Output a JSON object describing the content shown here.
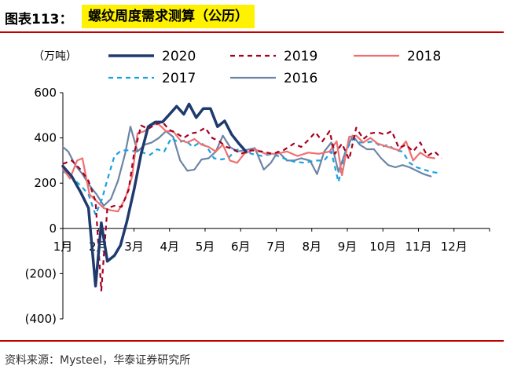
{
  "figure": {
    "label": "图表113：",
    "title": "螺纹周度需求测算（公历）",
    "source": "资料来源：Mysteel，华泰证券研究所"
  },
  "chart_data": {
    "type": "line",
    "title": "螺纹周度需求测算（公历）",
    "unit": "（万吨）",
    "xlabel": "",
    "ylabel": "（万吨）",
    "ylim": [
      -400,
      600
    ],
    "yticks": [
      -400,
      -200,
      0,
      200,
      400,
      600
    ],
    "ytick_labels": [
      "(400)",
      "(200)",
      "0",
      "200",
      "400",
      "600"
    ],
    "xlim": [
      1,
      13
    ],
    "xticks": [
      1,
      2,
      3,
      4,
      5,
      6,
      7,
      8,
      9,
      10,
      11,
      12
    ],
    "xtick_labels": [
      "1月",
      "2月",
      "3月",
      "4月",
      "5月",
      "6月",
      "7月",
      "8月",
      "9月",
      "10月",
      "11月",
      "12月"
    ],
    "legend": [
      "2020",
      "2019",
      "2018",
      "2017",
      "2016"
    ],
    "series": [
      {
        "name": "2020",
        "color": "#1f3a6e",
        "style": "solid",
        "width": 3.5,
        "points": [
          [
            1.0,
            275
          ],
          [
            1.25,
            230
          ],
          [
            1.5,
            160
          ],
          [
            1.72,
            90
          ],
          [
            1.92,
            -255
          ],
          [
            2.08,
            25
          ],
          [
            2.25,
            -145
          ],
          [
            2.45,
            -120
          ],
          [
            2.62,
            -75
          ],
          [
            2.8,
            30
          ],
          [
            3.0,
            170
          ],
          [
            3.2,
            330
          ],
          [
            3.4,
            450
          ],
          [
            3.6,
            470
          ],
          [
            3.8,
            470
          ],
          [
            4.0,
            505
          ],
          [
            4.2,
            540
          ],
          [
            4.4,
            505
          ],
          [
            4.55,
            550
          ],
          [
            4.75,
            490
          ],
          [
            4.95,
            530
          ],
          [
            5.15,
            530
          ],
          [
            5.35,
            450
          ],
          [
            5.55,
            475
          ],
          [
            5.75,
            415
          ],
          [
            5.95,
            375
          ],
          [
            6.15,
            340
          ]
        ]
      },
      {
        "name": "2019",
        "color": "#a50021",
        "style": "dashed",
        "width": 2.2,
        "points": [
          [
            1.0,
            285
          ],
          [
            1.25,
            300
          ],
          [
            1.5,
            260
          ],
          [
            1.72,
            210
          ],
          [
            1.92,
            120
          ],
          [
            2.08,
            -275
          ],
          [
            2.25,
            90
          ],
          [
            2.45,
            100
          ],
          [
            2.65,
            95
          ],
          [
            2.85,
            170
          ],
          [
            3.0,
            330
          ],
          [
            3.2,
            455
          ],
          [
            3.4,
            440
          ],
          [
            3.6,
            460
          ],
          [
            3.8,
            470
          ],
          [
            4.0,
            435
          ],
          [
            4.2,
            420
          ],
          [
            4.4,
            400
          ],
          [
            4.6,
            420
          ],
          [
            4.8,
            425
          ],
          [
            5.0,
            445
          ],
          [
            5.2,
            400
          ],
          [
            5.4,
            385
          ],
          [
            5.6,
            360
          ],
          [
            5.8,
            350
          ],
          [
            6.0,
            330
          ],
          [
            6.3,
            345
          ],
          [
            6.6,
            340
          ],
          [
            6.9,
            330
          ],
          [
            7.2,
            345
          ],
          [
            7.5,
            375
          ],
          [
            7.7,
            360
          ],
          [
            7.9,
            390
          ],
          [
            8.1,
            425
          ],
          [
            8.3,
            385
          ],
          [
            8.5,
            430
          ],
          [
            8.65,
            330
          ],
          [
            8.85,
            375
          ],
          [
            9.05,
            305
          ],
          [
            9.25,
            445
          ],
          [
            9.45,
            395
          ],
          [
            9.65,
            420
          ],
          [
            9.85,
            425
          ],
          [
            10.05,
            415
          ],
          [
            10.25,
            430
          ],
          [
            10.45,
            355
          ],
          [
            10.65,
            370
          ],
          [
            10.85,
            340
          ],
          [
            11.05,
            380
          ],
          [
            11.25,
            320
          ],
          [
            11.45,
            340
          ],
          [
            11.65,
            310
          ]
        ]
      },
      {
        "name": "2018",
        "color": "#f07070",
        "style": "solid",
        "width": 2.2,
        "points": [
          [
            1.0,
            265
          ],
          [
            1.2,
            220
          ],
          [
            1.4,
            300
          ],
          [
            1.55,
            310
          ],
          [
            1.75,
            150
          ],
          [
            1.95,
            120
          ],
          [
            2.15,
            90
          ],
          [
            2.35,
            80
          ],
          [
            2.55,
            75
          ],
          [
            2.75,
            130
          ],
          [
            2.95,
            230
          ],
          [
            3.1,
            420
          ],
          [
            3.3,
            430
          ],
          [
            3.5,
            460
          ],
          [
            3.7,
            460
          ],
          [
            3.9,
            430
          ],
          [
            4.1,
            430
          ],
          [
            4.3,
            390
          ],
          [
            4.5,
            380
          ],
          [
            4.7,
            395
          ],
          [
            4.9,
            370
          ],
          [
            5.1,
            360
          ],
          [
            5.3,
            340
          ],
          [
            5.5,
            370
          ],
          [
            5.7,
            300
          ],
          [
            5.9,
            290
          ],
          [
            6.1,
            330
          ],
          [
            6.4,
            350
          ],
          [
            6.7,
            330
          ],
          [
            7.0,
            330
          ],
          [
            7.3,
            340
          ],
          [
            7.6,
            320
          ],
          [
            7.9,
            335
          ],
          [
            8.2,
            330
          ],
          [
            8.5,
            340
          ],
          [
            8.7,
            385
          ],
          [
            8.85,
            235
          ],
          [
            9.05,
            405
          ],
          [
            9.25,
            410
          ],
          [
            9.45,
            380
          ],
          [
            9.65,
            400
          ],
          [
            9.85,
            375
          ],
          [
            10.05,
            365
          ],
          [
            10.25,
            355
          ],
          [
            10.45,
            345
          ],
          [
            10.65,
            385
          ],
          [
            10.85,
            300
          ],
          [
            11.05,
            335
          ],
          [
            11.25,
            315
          ],
          [
            11.45,
            310
          ]
        ]
      },
      {
        "name": "2017",
        "color": "#19a2e0",
        "style": "dashed",
        "width": 2.2,
        "points": [
          [
            1.0,
            255
          ],
          [
            1.25,
            225
          ],
          [
            1.5,
            190
          ],
          [
            1.72,
            150
          ],
          [
            1.92,
            60
          ],
          [
            2.1,
            130
          ],
          [
            2.25,
            215
          ],
          [
            2.45,
            320
          ],
          [
            2.65,
            345
          ],
          [
            2.85,
            345
          ],
          [
            3.05,
            340
          ],
          [
            3.25,
            335
          ],
          [
            3.45,
            325
          ],
          [
            3.65,
            350
          ],
          [
            3.85,
            340
          ],
          [
            4.05,
            400
          ],
          [
            4.25,
            380
          ],
          [
            4.45,
            390
          ],
          [
            4.65,
            360
          ],
          [
            4.85,
            380
          ],
          [
            5.05,
            360
          ],
          [
            5.25,
            310
          ],
          [
            5.45,
            305
          ],
          [
            5.65,
            310
          ],
          [
            5.85,
            345
          ],
          [
            6.05,
            355
          ],
          [
            6.3,
            330
          ],
          [
            6.6,
            320
          ],
          [
            6.9,
            330
          ],
          [
            7.2,
            310
          ],
          [
            7.5,
            295
          ],
          [
            7.8,
            290
          ],
          [
            8.1,
            300
          ],
          [
            8.35,
            300
          ],
          [
            8.55,
            340
          ],
          [
            8.75,
            205
          ],
          [
            8.95,
            340
          ],
          [
            9.15,
            395
          ],
          [
            9.35,
            380
          ],
          [
            9.55,
            380
          ],
          [
            9.75,
            385
          ],
          [
            9.95,
            360
          ],
          [
            10.15,
            370
          ],
          [
            10.35,
            345
          ],
          [
            10.55,
            340
          ],
          [
            10.75,
            290
          ],
          [
            10.95,
            270
          ],
          [
            11.15,
            260
          ],
          [
            11.35,
            250
          ],
          [
            11.55,
            245
          ]
        ]
      },
      {
        "name": "2016",
        "color": "#6d84a6",
        "style": "solid",
        "width": 2.2,
        "points": [
          [
            1.0,
            360
          ],
          [
            1.15,
            340
          ],
          [
            1.35,
            280
          ],
          [
            1.55,
            240
          ],
          [
            1.75,
            190
          ],
          [
            1.95,
            150
          ],
          [
            2.15,
            100
          ],
          [
            2.35,
            130
          ],
          [
            2.55,
            210
          ],
          [
            2.75,
            330
          ],
          [
            2.9,
            450
          ],
          [
            3.1,
            340
          ],
          [
            3.3,
            370
          ],
          [
            3.5,
            380
          ],
          [
            3.7,
            400
          ],
          [
            3.9,
            430
          ],
          [
            4.1,
            405
          ],
          [
            4.3,
            300
          ],
          [
            4.5,
            255
          ],
          [
            4.7,
            260
          ],
          [
            4.9,
            305
          ],
          [
            5.1,
            310
          ],
          [
            5.3,
            340
          ],
          [
            5.5,
            410
          ],
          [
            5.7,
            360
          ],
          [
            5.9,
            340
          ],
          [
            6.1,
            345
          ],
          [
            6.4,
            355
          ],
          [
            6.65,
            260
          ],
          [
            6.85,
            290
          ],
          [
            7.05,
            340
          ],
          [
            7.3,
            300
          ],
          [
            7.5,
            300
          ],
          [
            7.7,
            310
          ],
          [
            7.95,
            300
          ],
          [
            8.15,
            240
          ],
          [
            8.35,
            340
          ],
          [
            8.55,
            380
          ],
          [
            8.75,
            250
          ],
          [
            8.95,
            340
          ],
          [
            9.15,
            410
          ],
          [
            9.35,
            370
          ],
          [
            9.55,
            350
          ],
          [
            9.75,
            350
          ],
          [
            9.95,
            310
          ],
          [
            10.15,
            280
          ],
          [
            10.35,
            270
          ],
          [
            10.55,
            280
          ],
          [
            10.75,
            270
          ],
          [
            10.95,
            255
          ],
          [
            11.15,
            240
          ],
          [
            11.35,
            230
          ]
        ]
      }
    ]
  }
}
